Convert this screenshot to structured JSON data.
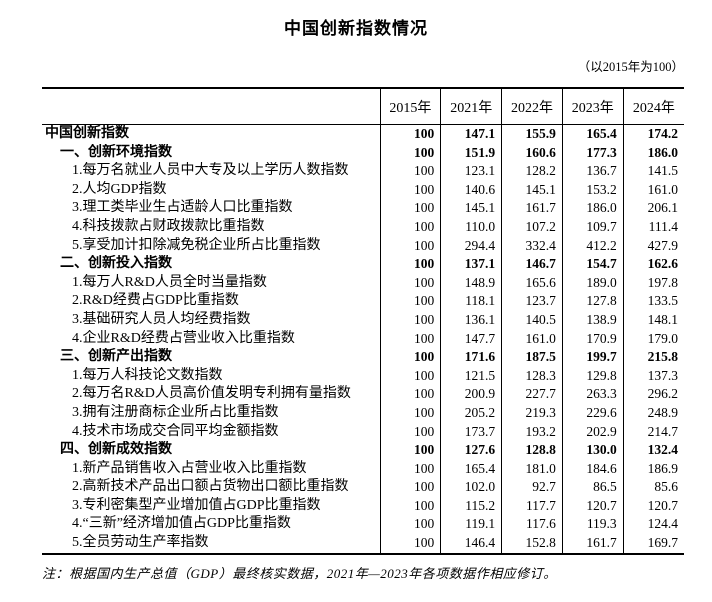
{
  "title": "中国创新指数情况",
  "subtitle": "（以2015年为100）",
  "note": "注：根据国内生产总值（GDP）最终核实数据，2021年—2023年各项数据作相应修订。",
  "colors": {
    "text": "#000000",
    "background": "#ffffff",
    "border": "#000000"
  },
  "chart_data": {
    "type": "table",
    "title": "中国创新指数情况",
    "base_note": "（以2015年为100）",
    "columns": [
      "",
      "2015年",
      "2021年",
      "2022年",
      "2023年",
      "2024年"
    ],
    "rows": [
      {
        "label": "中国创新指数",
        "level": 0,
        "bold": true,
        "values": [
          "100",
          "147.1",
          "155.9",
          "165.4",
          "174.2"
        ]
      },
      {
        "label": "一、创新环境指数",
        "level": 1,
        "bold": true,
        "values": [
          "100",
          "151.9",
          "160.6",
          "177.3",
          "186.0"
        ]
      },
      {
        "label": "1.每万名就业人员中大专及以上学历人数指数",
        "level": 2,
        "bold": false,
        "values": [
          "100",
          "123.1",
          "128.2",
          "136.7",
          "141.5"
        ]
      },
      {
        "label": "2.人均GDP指数",
        "level": 2,
        "bold": false,
        "values": [
          "100",
          "140.6",
          "145.1",
          "153.2",
          "161.0"
        ]
      },
      {
        "label": "3.理工类毕业生占适龄人口比重指数",
        "level": 2,
        "bold": false,
        "values": [
          "100",
          "145.1",
          "161.7",
          "186.0",
          "206.1"
        ]
      },
      {
        "label": "4.科技拨款占财政拨款比重指数",
        "level": 2,
        "bold": false,
        "values": [
          "100",
          "110.0",
          "107.2",
          "109.7",
          "111.4"
        ]
      },
      {
        "label": "5.享受加计扣除减免税企业所占比重指数",
        "level": 2,
        "bold": false,
        "values": [
          "100",
          "294.4",
          "332.4",
          "412.2",
          "427.9"
        ]
      },
      {
        "label": "二、创新投入指数",
        "level": 1,
        "bold": true,
        "values": [
          "100",
          "137.1",
          "146.7",
          "154.7",
          "162.6"
        ]
      },
      {
        "label": "1.每万人R&D人员全时当量指数",
        "level": 2,
        "bold": false,
        "values": [
          "100",
          "148.9",
          "165.6",
          "189.0",
          "197.8"
        ]
      },
      {
        "label": "2.R&D经费占GDP比重指数",
        "level": 2,
        "bold": false,
        "values": [
          "100",
          "118.1",
          "123.7",
          "127.8",
          "133.5"
        ]
      },
      {
        "label": "3.基础研究人员人均经费指数",
        "level": 2,
        "bold": false,
        "values": [
          "100",
          "136.1",
          "140.5",
          "138.9",
          "148.1"
        ]
      },
      {
        "label": "4.企业R&D经费占营业收入比重指数",
        "level": 2,
        "bold": false,
        "values": [
          "100",
          "147.7",
          "161.0",
          "170.9",
          "179.0"
        ]
      },
      {
        "label": "三、创新产出指数",
        "level": 1,
        "bold": true,
        "values": [
          "100",
          "171.6",
          "187.5",
          "199.7",
          "215.8"
        ]
      },
      {
        "label": "1.每万人科技论文数指数",
        "level": 2,
        "bold": false,
        "values": [
          "100",
          "121.5",
          "128.3",
          "129.8",
          "137.3"
        ]
      },
      {
        "label": "2.每万名R&D人员高价值发明专利拥有量指数",
        "level": 2,
        "bold": false,
        "values": [
          "100",
          "200.9",
          "227.7",
          "263.3",
          "296.2"
        ]
      },
      {
        "label": "3.拥有注册商标企业所占比重指数",
        "level": 2,
        "bold": false,
        "values": [
          "100",
          "205.2",
          "219.3",
          "229.6",
          "248.9"
        ]
      },
      {
        "label": "4.技术市场成交合同平均金额指数",
        "level": 2,
        "bold": false,
        "values": [
          "100",
          "173.7",
          "193.2",
          "202.9",
          "214.7"
        ]
      },
      {
        "label": "四、创新成效指数",
        "level": 1,
        "bold": true,
        "values": [
          "100",
          "127.6",
          "128.8",
          "130.0",
          "132.4"
        ]
      },
      {
        "label": "1.新产品销售收入占营业收入比重指数",
        "level": 2,
        "bold": false,
        "values": [
          "100",
          "165.4",
          "181.0",
          "184.6",
          "186.9"
        ]
      },
      {
        "label": "2.高新技术产品出口额占货物出口额比重指数",
        "level": 2,
        "bold": false,
        "values": [
          "100",
          "102.0",
          "92.7",
          "86.5",
          "85.6"
        ]
      },
      {
        "label": "3.专利密集型产业增加值占GDP比重指数",
        "level": 2,
        "bold": false,
        "values": [
          "100",
          "115.2",
          "117.7",
          "120.7",
          "120.7"
        ]
      },
      {
        "label": "4.“三新”经济增加值占GDP比重指数",
        "level": 2,
        "bold": false,
        "values": [
          "100",
          "119.1",
          "117.6",
          "119.3",
          "124.4"
        ]
      },
      {
        "label": "5.全员劳动生产率指数",
        "level": 2,
        "bold": false,
        "values": [
          "100",
          "146.4",
          "152.8",
          "161.7",
          "169.7"
        ]
      }
    ]
  }
}
